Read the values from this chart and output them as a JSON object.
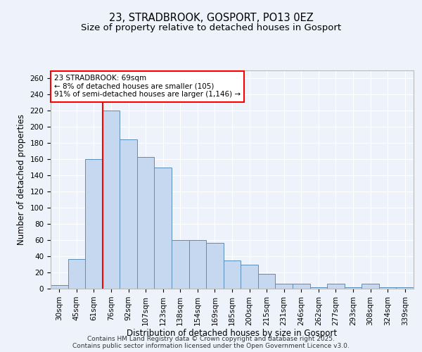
{
  "title_line1": "23, STRADBROOK, GOSPORT, PO13 0EZ",
  "title_line2": "Size of property relative to detached houses in Gosport",
  "xlabel": "Distribution of detached houses by size in Gosport",
  "ylabel": "Number of detached properties",
  "categories": [
    "30sqm",
    "45sqm",
    "61sqm",
    "76sqm",
    "92sqm",
    "107sqm",
    "123sqm",
    "138sqm",
    "154sqm",
    "169sqm",
    "185sqm",
    "200sqm",
    "215sqm",
    "231sqm",
    "246sqm",
    "262sqm",
    "277sqm",
    "293sqm",
    "308sqm",
    "324sqm",
    "339sqm"
  ],
  "values": [
    4,
    37,
    160,
    220,
    185,
    163,
    150,
    60,
    60,
    57,
    35,
    30,
    18,
    6,
    6,
    2,
    6,
    2,
    6,
    2,
    2
  ],
  "bar_color": "#c5d8f0",
  "bar_edge_color": "#5b8db8",
  "vline_x_idx": 2,
  "vline_color": "red",
  "annotation_text": "23 STRADBROOK: 69sqm\n← 8% of detached houses are smaller (105)\n91% of semi-detached houses are larger (1,146) →",
  "annotation_box_color": "white",
  "annotation_box_edge_color": "red",
  "ylim": [
    0,
    270
  ],
  "yticks": [
    0,
    20,
    40,
    60,
    80,
    100,
    120,
    140,
    160,
    180,
    200,
    220,
    240,
    260
  ],
  "background_color": "#eef2fb",
  "footer_line1": "Contains HM Land Registry data © Crown copyright and database right 2025.",
  "footer_line2": "Contains public sector information licensed under the Open Government Licence v3.0.",
  "title_fontsize": 10.5,
  "subtitle_fontsize": 9.5,
  "axis_label_fontsize": 8.5,
  "tick_fontsize": 7.5,
  "annotation_fontsize": 7.5,
  "footer_fontsize": 6.5
}
